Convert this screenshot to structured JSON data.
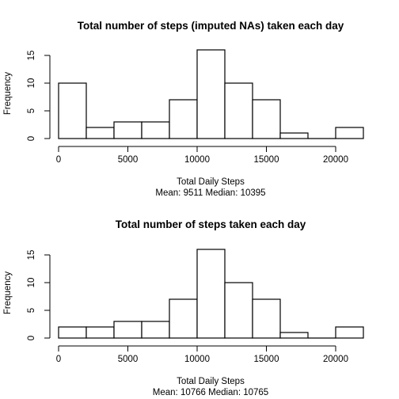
{
  "chart_data": [
    {
      "type": "bar",
      "title": "Total number of steps (imputed NAs) taken each day",
      "xlabel": "Total Daily Steps",
      "subtitle": "Mean:  9511  Median:  10395",
      "ylabel": "Frequency",
      "bin_edges": [
        0,
        2000,
        4000,
        6000,
        8000,
        10000,
        12000,
        14000,
        16000,
        18000,
        20000,
        22000
      ],
      "values": [
        10,
        2,
        3,
        3,
        7,
        16,
        10,
        7,
        1,
        0,
        2
      ],
      "xlim": [
        0,
        22000
      ],
      "ylim": [
        0,
        16
      ],
      "xticks": [
        0,
        5000,
        10000,
        15000,
        20000
      ],
      "yticks": [
        0,
        5,
        10,
        15
      ]
    },
    {
      "type": "bar",
      "title": "Total number of steps taken each day",
      "xlabel": "Total Daily Steps",
      "subtitle": "Mean:  10766  Median:  10765",
      "ylabel": "Frequency",
      "bin_edges": [
        0,
        2000,
        4000,
        6000,
        8000,
        10000,
        12000,
        14000,
        16000,
        18000,
        20000,
        22000
      ],
      "values": [
        2,
        2,
        3,
        3,
        7,
        16,
        10,
        7,
        1,
        0,
        2
      ],
      "xlim": [
        0,
        22000
      ],
      "ylim": [
        0,
        16
      ],
      "xticks": [
        0,
        5000,
        10000,
        15000,
        20000
      ],
      "yticks": [
        0,
        5,
        10,
        15
      ]
    }
  ]
}
